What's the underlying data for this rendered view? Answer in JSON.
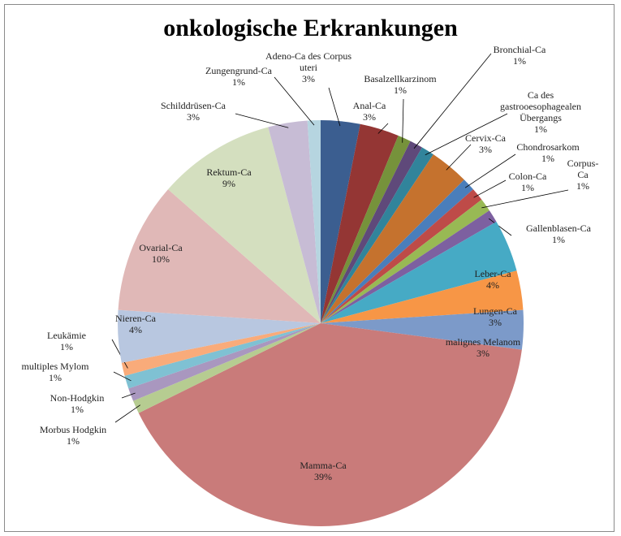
{
  "chart_data": {
    "type": "pie",
    "title": "onkologische Erkrankungen",
    "categories": [
      "Adeno-Ca des Corpus uteri",
      "Anal-Ca",
      "Basalzellkarzinom",
      "Bronchial-Ca",
      "Ca des gastrooesophagealen Übergangs",
      "Cervix-Ca",
      "Chondrosarkom",
      "Colon-Ca",
      "Corpus-Ca",
      "Gallenblasen-Ca",
      "Leber-Ca",
      "Lungen-Ca",
      "malignes Melanom",
      "Mamma-Ca",
      "Morbus Hodgkin",
      "Non-Hodgkin",
      "multiples Mylom",
      "Leukämie",
      "Nieren-Ca",
      "Ovarial-Ca",
      "Rektum-Ca",
      "Schilddrüsen-Ca",
      "Zungengrund-Ca"
    ],
    "values": [
      3,
      3,
      1,
      1,
      1,
      3,
      1,
      1,
      1,
      1,
      4,
      3,
      3,
      39,
      1,
      1,
      1,
      1,
      4,
      10,
      9,
      3,
      1
    ],
    "value_labels": [
      "3%",
      "3%",
      "1%",
      "1%",
      "1%",
      "3%",
      "1%",
      "1%",
      "1%",
      "1%",
      "4%",
      "3%",
      "3%",
      "39%",
      "1%",
      "1%",
      "1%",
      "1%",
      "4%",
      "10%",
      "9%",
      "3%",
      "1%"
    ],
    "colors": [
      "#3b5e90",
      "#943634",
      "#76923b",
      "#5f497a",
      "#31849b",
      "#c5722e",
      "#4a7ebb",
      "#be4b48",
      "#98b954",
      "#7d60a0",
      "#46aac5",
      "#f79646",
      "#7c9ac9",
      "#c97b7a",
      "#b6cc91",
      "#a997bf",
      "#7fc1d3",
      "#f9ab7a",
      "#b8c7e0",
      "#e0b8b7",
      "#d4dfbf",
      "#c7bcd5",
      "#b6d5e0"
    ]
  }
}
